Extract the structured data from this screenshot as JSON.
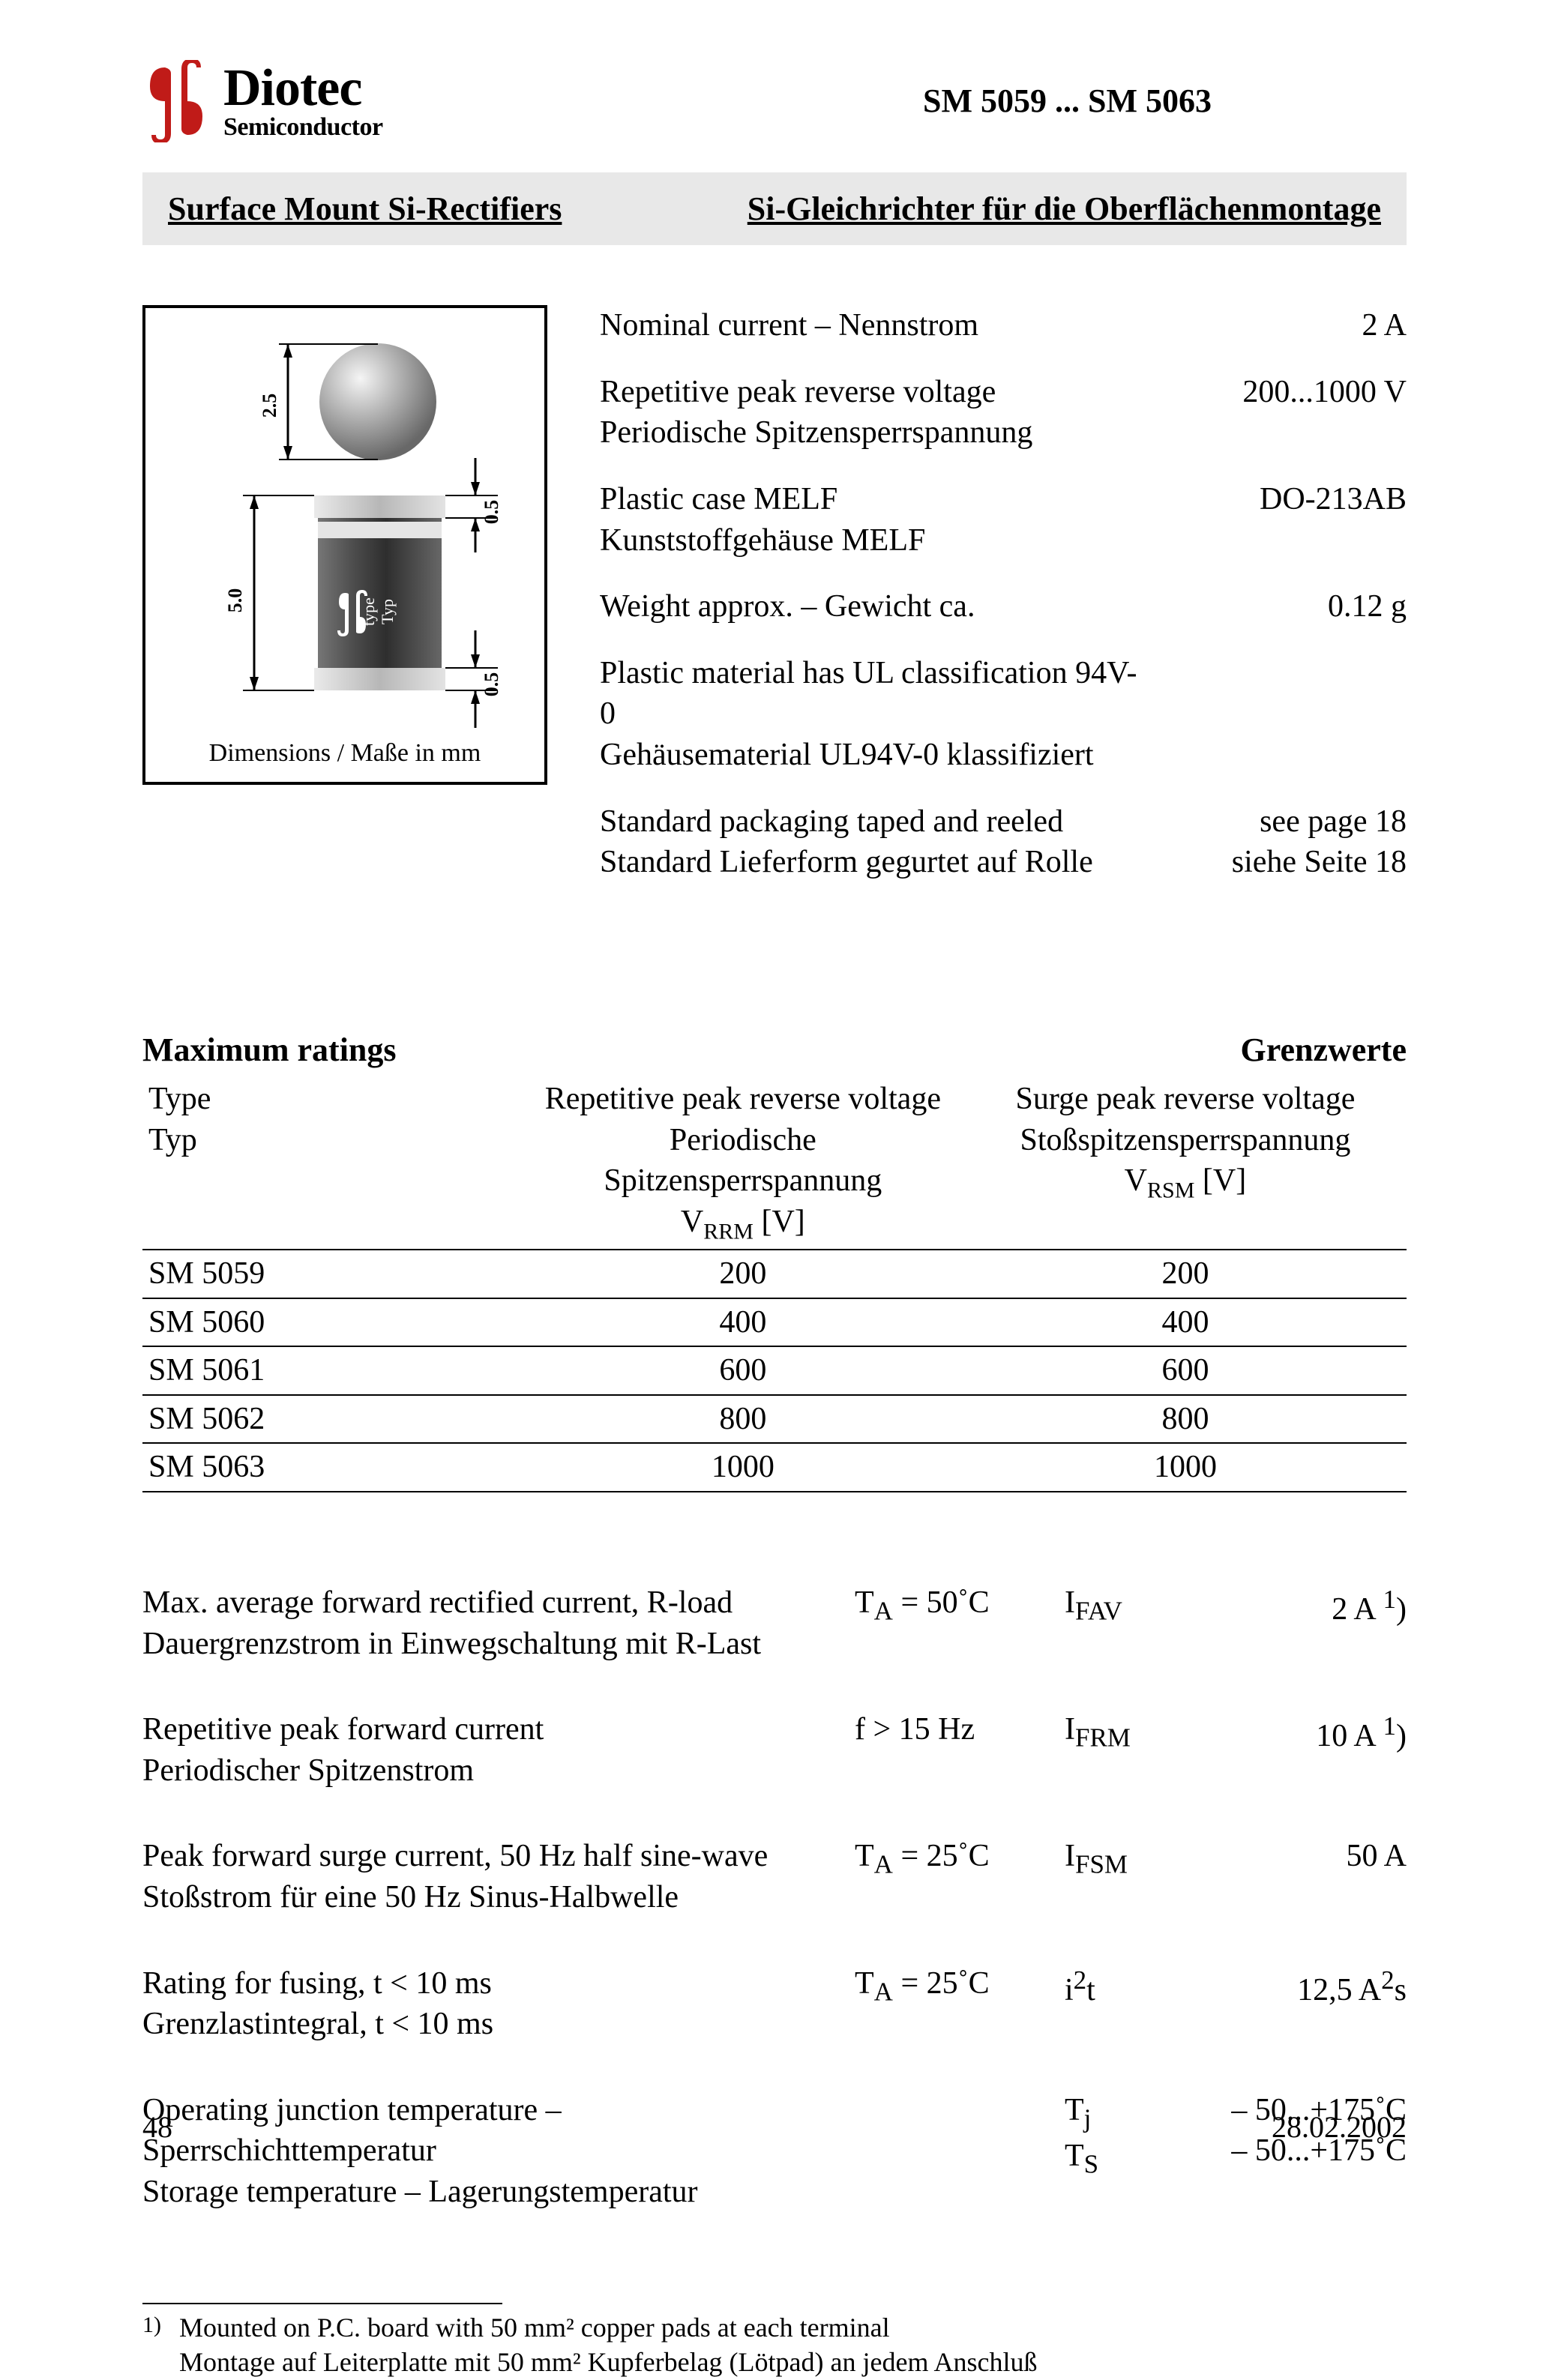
{
  "logo": {
    "brand": "Diotec",
    "sub": "Semiconductor",
    "glyph_color": "#c01b18"
  },
  "part_range": "SM 5059 ... SM 5063",
  "banner": {
    "left": "Surface Mount Si-Rectifiers",
    "right": "Si-Gleichrichter für die Oberflächenmontage"
  },
  "diagram": {
    "caption": "Dimensions / Maße in mm",
    "dims": {
      "height": "5.0",
      "ball": "2.5",
      "cap_top": "0.5",
      "cap_bot": "0.5"
    },
    "body_color": "#545454",
    "cap_color": "#c9c9c9",
    "ball_grad_from": "#f2f2f2",
    "ball_grad_to": "#707070"
  },
  "specs": [
    {
      "label_en": "Nominal current – Nennstrom",
      "label_de": "",
      "value": "2 A"
    },
    {
      "label_en": "Repetitive peak reverse voltage",
      "label_de": "Periodische Spitzensperrspannung",
      "value": "200...1000 V"
    },
    {
      "label_en": "Plastic case MELF",
      "label_de": "Kunststoffgehäuse MELF",
      "value": "DO-213AB"
    },
    {
      "label_en": "Weight approx. – Gewicht ca.",
      "label_de": "",
      "value": "0.12 g"
    },
    {
      "label_en": "Plastic material has UL classification 94V-0",
      "label_de": "Gehäusematerial UL94V-0 klassifiziert",
      "value": ""
    },
    {
      "label_en": "Standard packaging taped and reeled",
      "label_de": "Standard Lieferform gegurtet auf Rolle",
      "value": "see page 18\nsiehe Seite 18"
    }
  ],
  "max_headers": {
    "left": "Maximum ratings",
    "right": "Grenzwerte"
  },
  "max_table": {
    "cols": {
      "type_en": "Type",
      "type_de": "Typ",
      "vrrm_en": "Repetitive peak reverse voltage",
      "vrrm_de": "Periodische Spitzensperrspannung",
      "vrrm_sym": "V",
      "vrrm_sub": "RRM",
      "vrrm_unit": "[V]",
      "vrsm_en": "Surge peak reverse voltage",
      "vrsm_de": "Stoßspitzensperrspannung",
      "vrsm_sym": "V",
      "vrsm_sub": "RSM",
      "vrsm_unit": "[V]"
    },
    "rows": [
      {
        "type": "SM 5059",
        "vrrm": "200",
        "vrsm": "200"
      },
      {
        "type": "SM 5060",
        "vrrm": "400",
        "vrsm": "400"
      },
      {
        "type": "SM 5061",
        "vrrm": "600",
        "vrsm": "600"
      },
      {
        "type": "SM 5062",
        "vrrm": "800",
        "vrsm": "800"
      },
      {
        "type": "SM 5063",
        "vrrm": "1000",
        "vrsm": "1000"
      }
    ]
  },
  "params": [
    {
      "en": "Max. average forward rectified current, R-load",
      "de": "Dauergrenzstrom in Einwegschaltung mit R-Last",
      "cond_html": "T<sub>A</sub> = 50˚C",
      "sym_html": "I<sub>FAV</sub>",
      "val_html": "2 A<sup> 1</sup>)"
    },
    {
      "en": "Repetitive peak forward current",
      "de": "Periodischer Spitzenstrom",
      "cond_html": "f > 15 Hz",
      "sym_html": "I<sub>FRM</sub>",
      "val_html": "10 A<sup> 1</sup>)"
    },
    {
      "en": "Peak forward surge current, 50 Hz half sine-wave",
      "de": "Stoßstrom für eine 50 Hz Sinus-Halbwelle",
      "cond_html": "T<sub>A</sub> = 25˚C",
      "sym_html": "I<sub>FSM</sub>",
      "val_html": "50 A"
    },
    {
      "en": "Rating for fusing, t < 10 ms",
      "de": "Grenzlastintegral, t < 10 ms",
      "cond_html": "T<sub>A</sub> = 25˚C",
      "sym_html": "i<sup>2</sup>t",
      "val_html": "12,5 A<sup>2</sup>s"
    },
    {
      "en": "Operating junction temperature – Sperrschichttemperatur",
      "de": "Storage temperature – Lagerungstemperatur",
      "cond_html": "",
      "sym_html": "T<sub>j</sub><br>T<sub>S</sub>",
      "val_html": "– 50...+175˚C<br>– 50...+175˚C"
    }
  ],
  "footnote": {
    "mark": "1)",
    "en": "Mounted on P.C. board with 50 mm² copper pads at each terminal",
    "de": "Montage auf Leiterplatte mit 50 mm² Kupferbelag (Lötpad) an jedem Anschluß"
  },
  "footer": {
    "page": "48",
    "date": "28.02.2002"
  }
}
